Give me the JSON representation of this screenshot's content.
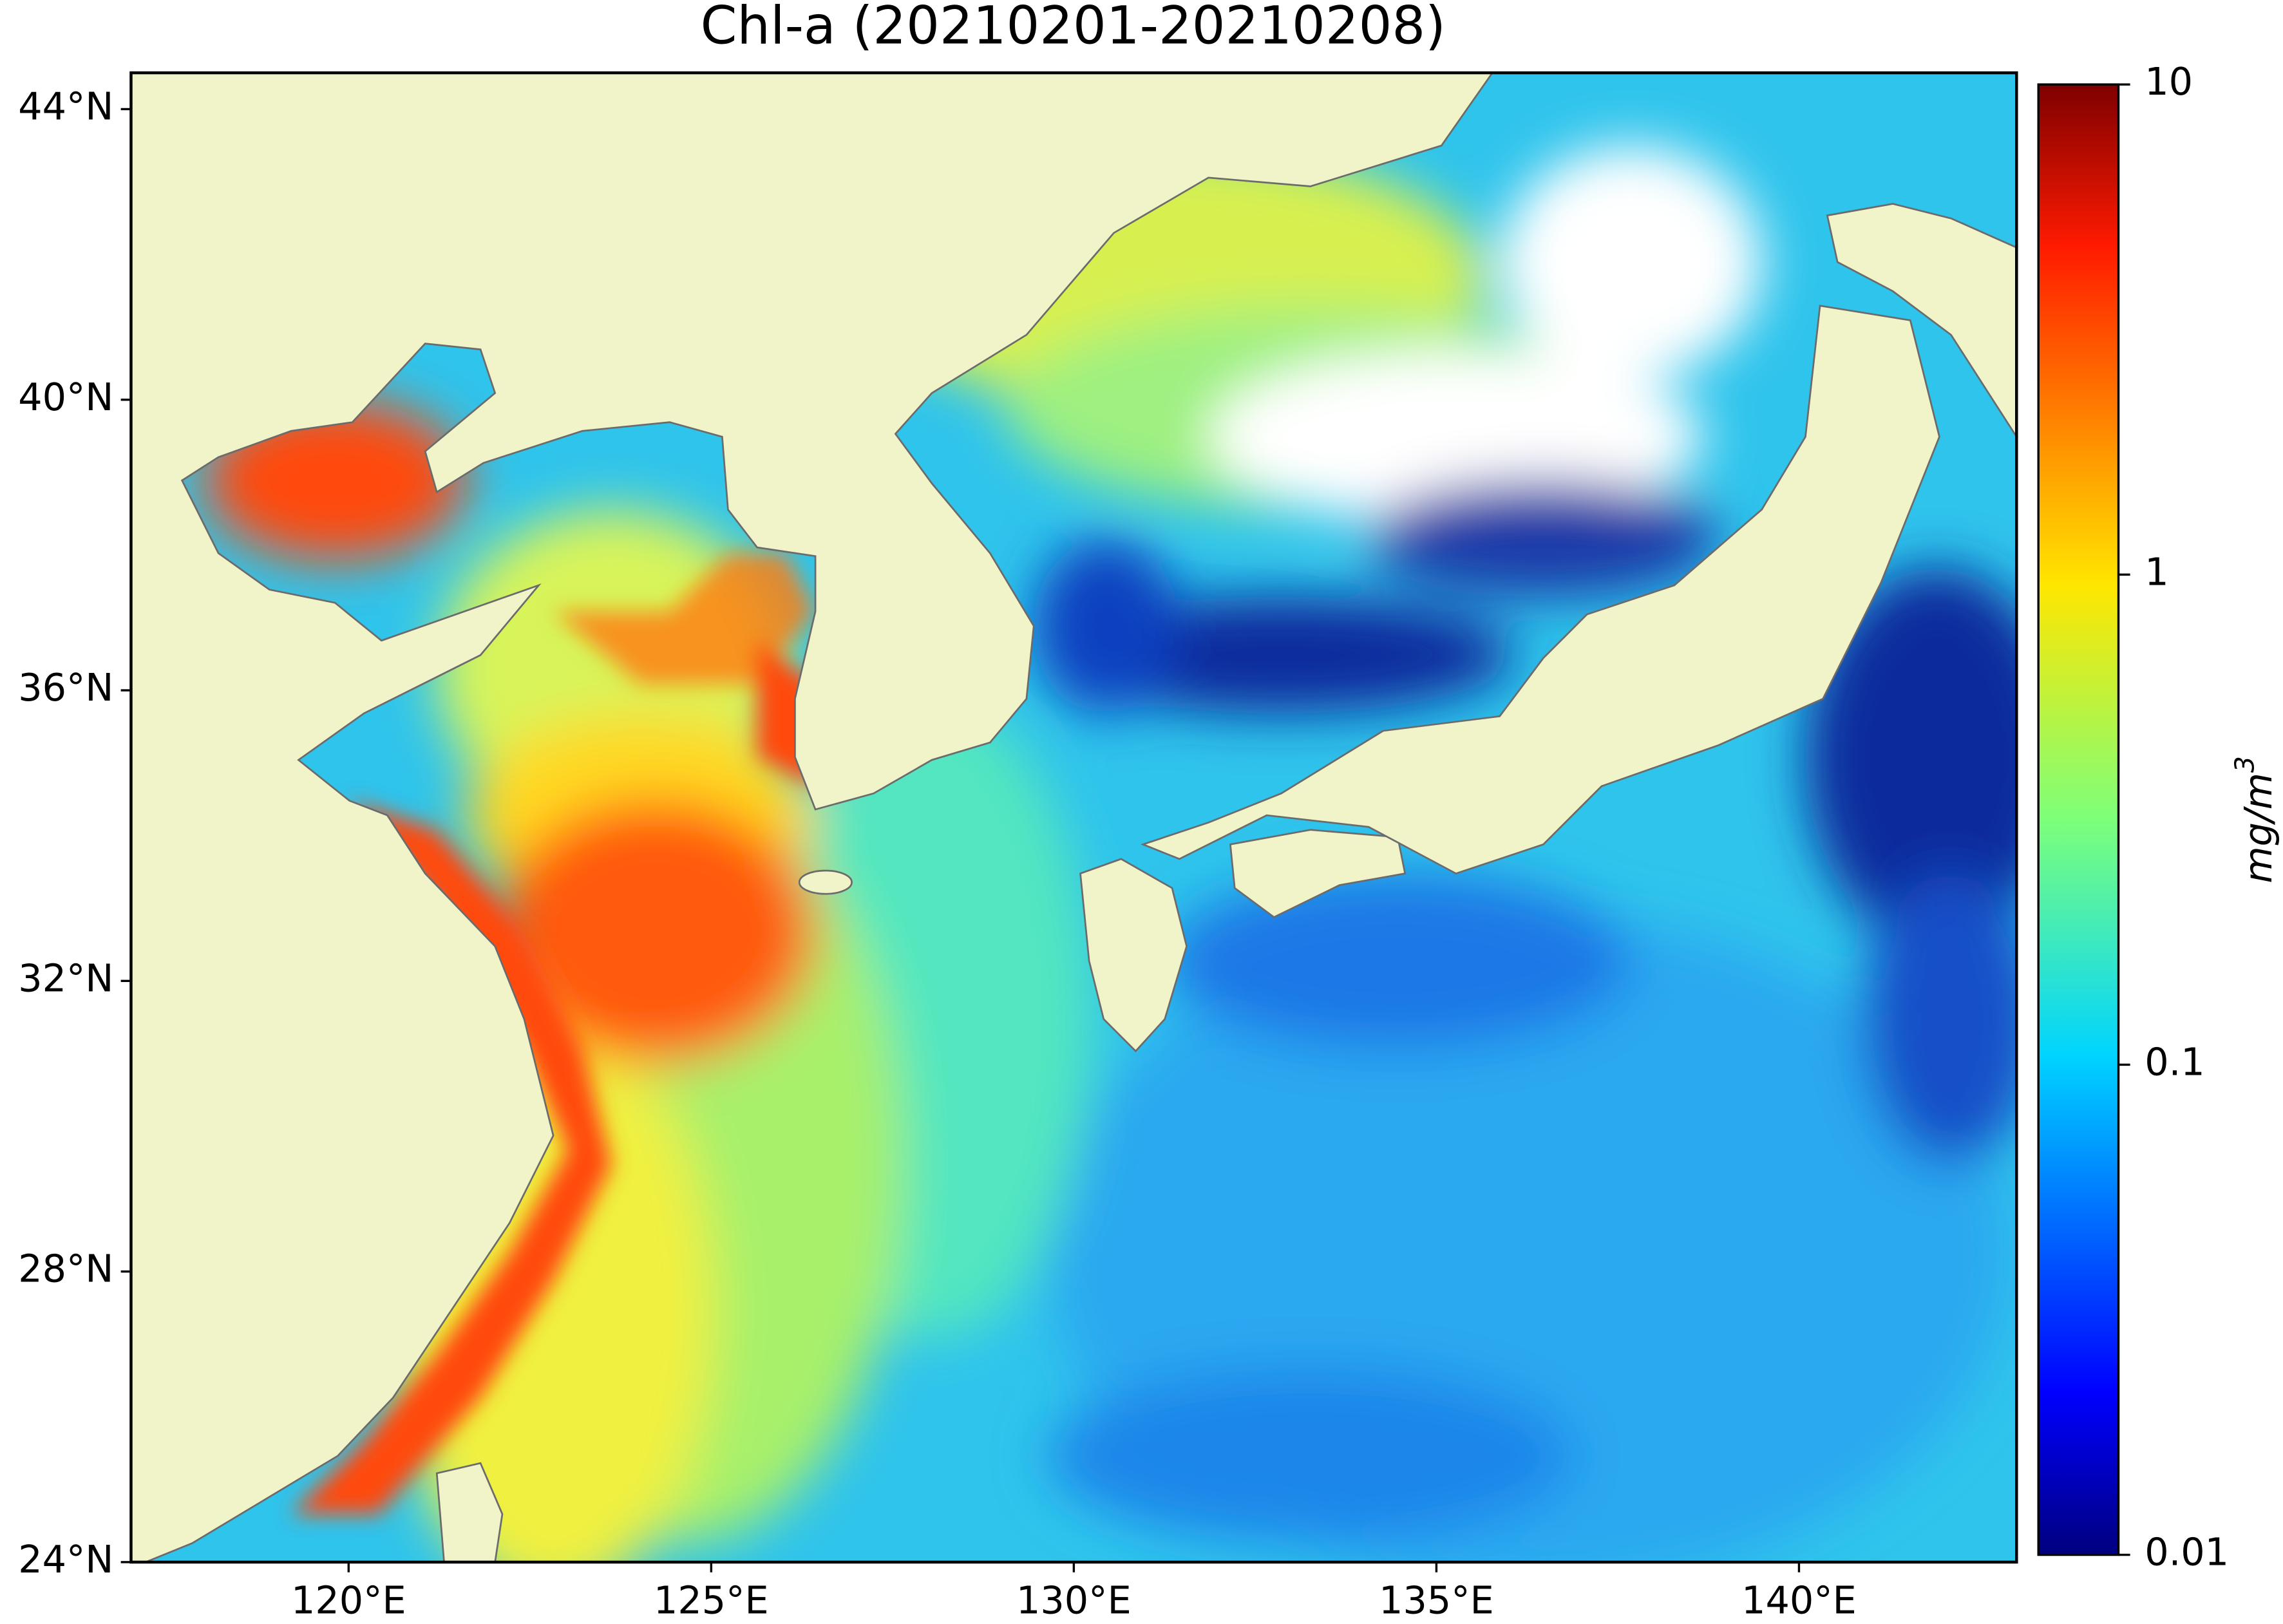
{
  "map": {
    "title": "Chl-a (20210201-20210208)",
    "xlim": [
      117,
      143
    ],
    "ylim": [
      24,
      44.5
    ],
    "xticks": [
      {
        "value": 120,
        "label": "120°E"
      },
      {
        "value": 125,
        "label": "125°E"
      },
      {
        "value": 130,
        "label": "130°E"
      },
      {
        "value": 135,
        "label": "135°E"
      },
      {
        "value": 140,
        "label": "140°E"
      }
    ],
    "yticks": [
      {
        "value": 24,
        "label": "24°N"
      },
      {
        "value": 28,
        "label": "28°N"
      },
      {
        "value": 32,
        "label": "32°N"
      },
      {
        "value": 36,
        "label": "36°N"
      },
      {
        "value": 40,
        "label": "40°N"
      },
      {
        "value": 44,
        "label": "44°N"
      }
    ],
    "colorbar": {
      "label": "mg/m",
      "label_superscript": "3",
      "scale": "log",
      "lim": [
        0.01,
        10
      ],
      "ticks": [
        0.01,
        0.1,
        1,
        10
      ]
    }
  }
}
